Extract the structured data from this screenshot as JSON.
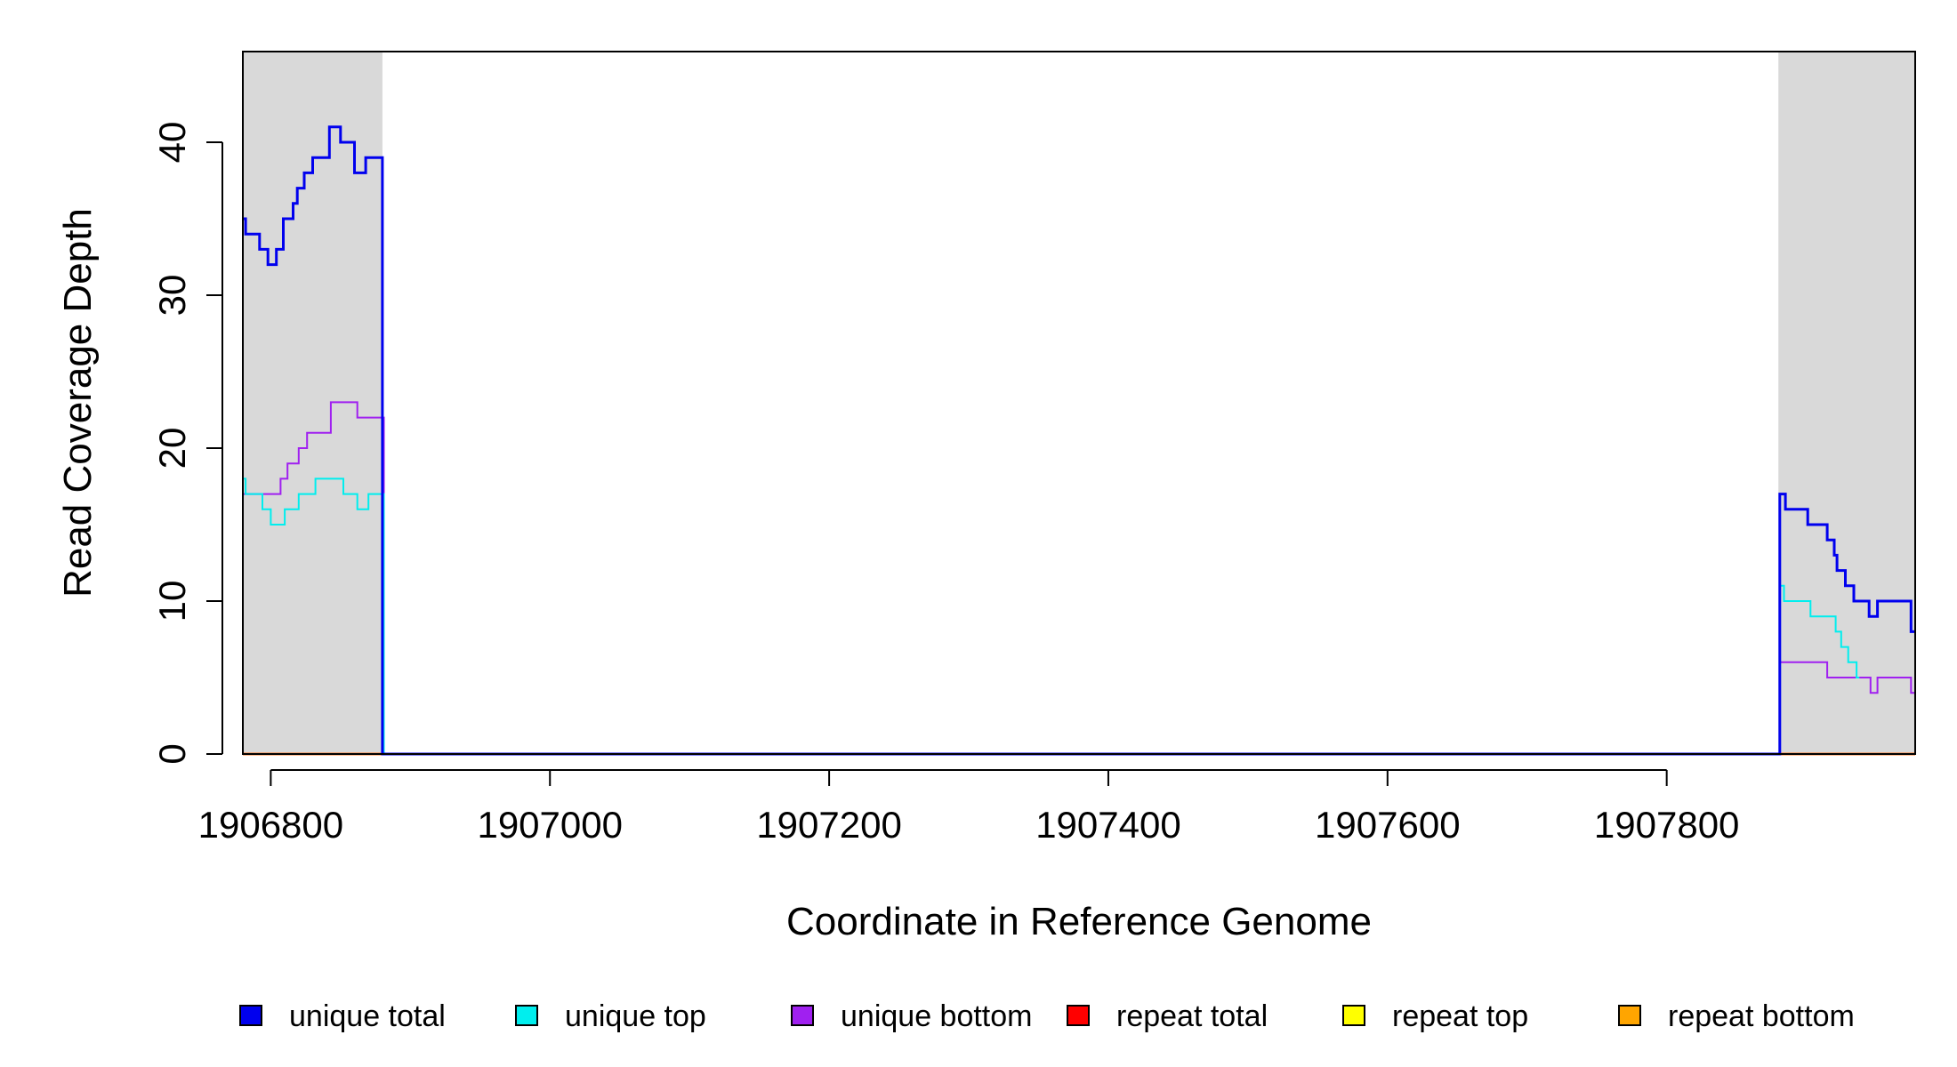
{
  "chart_data": {
    "type": "line",
    "title": "",
    "xlabel": "Coordinate in Reference Genome",
    "ylabel": "Read Coverage Depth",
    "xlim": [
      1906780,
      1907978
    ],
    "ylim": [
      0,
      46
    ],
    "x_ticks": [
      "1906800",
      "1907000",
      "1907200",
      "1907400",
      "1907600",
      "1907800"
    ],
    "y_ticks": [
      "0",
      "10",
      "20",
      "30",
      "40"
    ],
    "grid": false,
    "legend_position": "bottom",
    "shaded_regions": [
      [
        1906780,
        1906880
      ],
      [
        1907880,
        1907978
      ]
    ],
    "shaded_color": "#d9d9d9",
    "series": [
      {
        "name": "unique total",
        "color": "#0000ee",
        "x": [
          1906780,
          1906782,
          1906792,
          1906798,
          1906804,
          1906809,
          1906816,
          1906819,
          1906824,
          1906830,
          1906842,
          1906850,
          1906860,
          1906868,
          1906875,
          1906880,
          1906881,
          1907880,
          1907881,
          1907885,
          1907901,
          1907915,
          1907920,
          1907922,
          1907928,
          1907934,
          1907945,
          1907951,
          1907975
        ],
        "y": [
          35,
          34,
          33,
          32,
          33,
          35,
          36,
          37,
          38,
          39,
          41,
          40,
          38,
          39,
          39,
          0,
          0,
          0,
          17,
          16,
          15,
          14,
          13,
          12,
          11,
          10,
          9,
          10,
          8
        ]
      },
      {
        "name": "unique top",
        "color": "#00eeee",
        "x": [
          1906780,
          1906782,
          1906794,
          1906800,
          1906810,
          1906820,
          1906832,
          1906852,
          1906862,
          1906870,
          1906880,
          1906881,
          1907880,
          1907881,
          1907884,
          1907903,
          1907921,
          1907923,
          1907925,
          1907930,
          1907936
        ],
        "y": [
          18,
          17,
          16,
          15,
          16,
          17,
          18,
          17,
          16,
          17,
          17,
          0,
          0,
          11,
          10,
          9,
          8,
          8,
          7,
          6,
          5
        ],
        "visible_to": 1907938
      },
      {
        "name": "unique bottom",
        "color": "#a020f0",
        "x": [
          1906780,
          1906807,
          1906812,
          1906820,
          1906826,
          1906843,
          1906862,
          1906880,
          1906881,
          1907880,
          1907881,
          1907915,
          1907946,
          1907951,
          1907975
        ],
        "y": [
          17,
          18,
          19,
          20,
          21,
          23,
          22,
          22,
          0,
          0,
          6,
          5,
          4,
          5,
          4
        ]
      },
      {
        "name": "repeat total",
        "color": "#ff0000",
        "x": [
          1906780,
          1907978
        ],
        "y": [
          0,
          0
        ]
      },
      {
        "name": "repeat top",
        "color": "#ffff00",
        "x": [
          1906780,
          1907978
        ],
        "y": [
          0,
          0
        ]
      },
      {
        "name": "repeat bottom",
        "color": "#ffa500",
        "x": [
          1906780,
          1907978
        ],
        "y": [
          0,
          0
        ]
      }
    ]
  }
}
